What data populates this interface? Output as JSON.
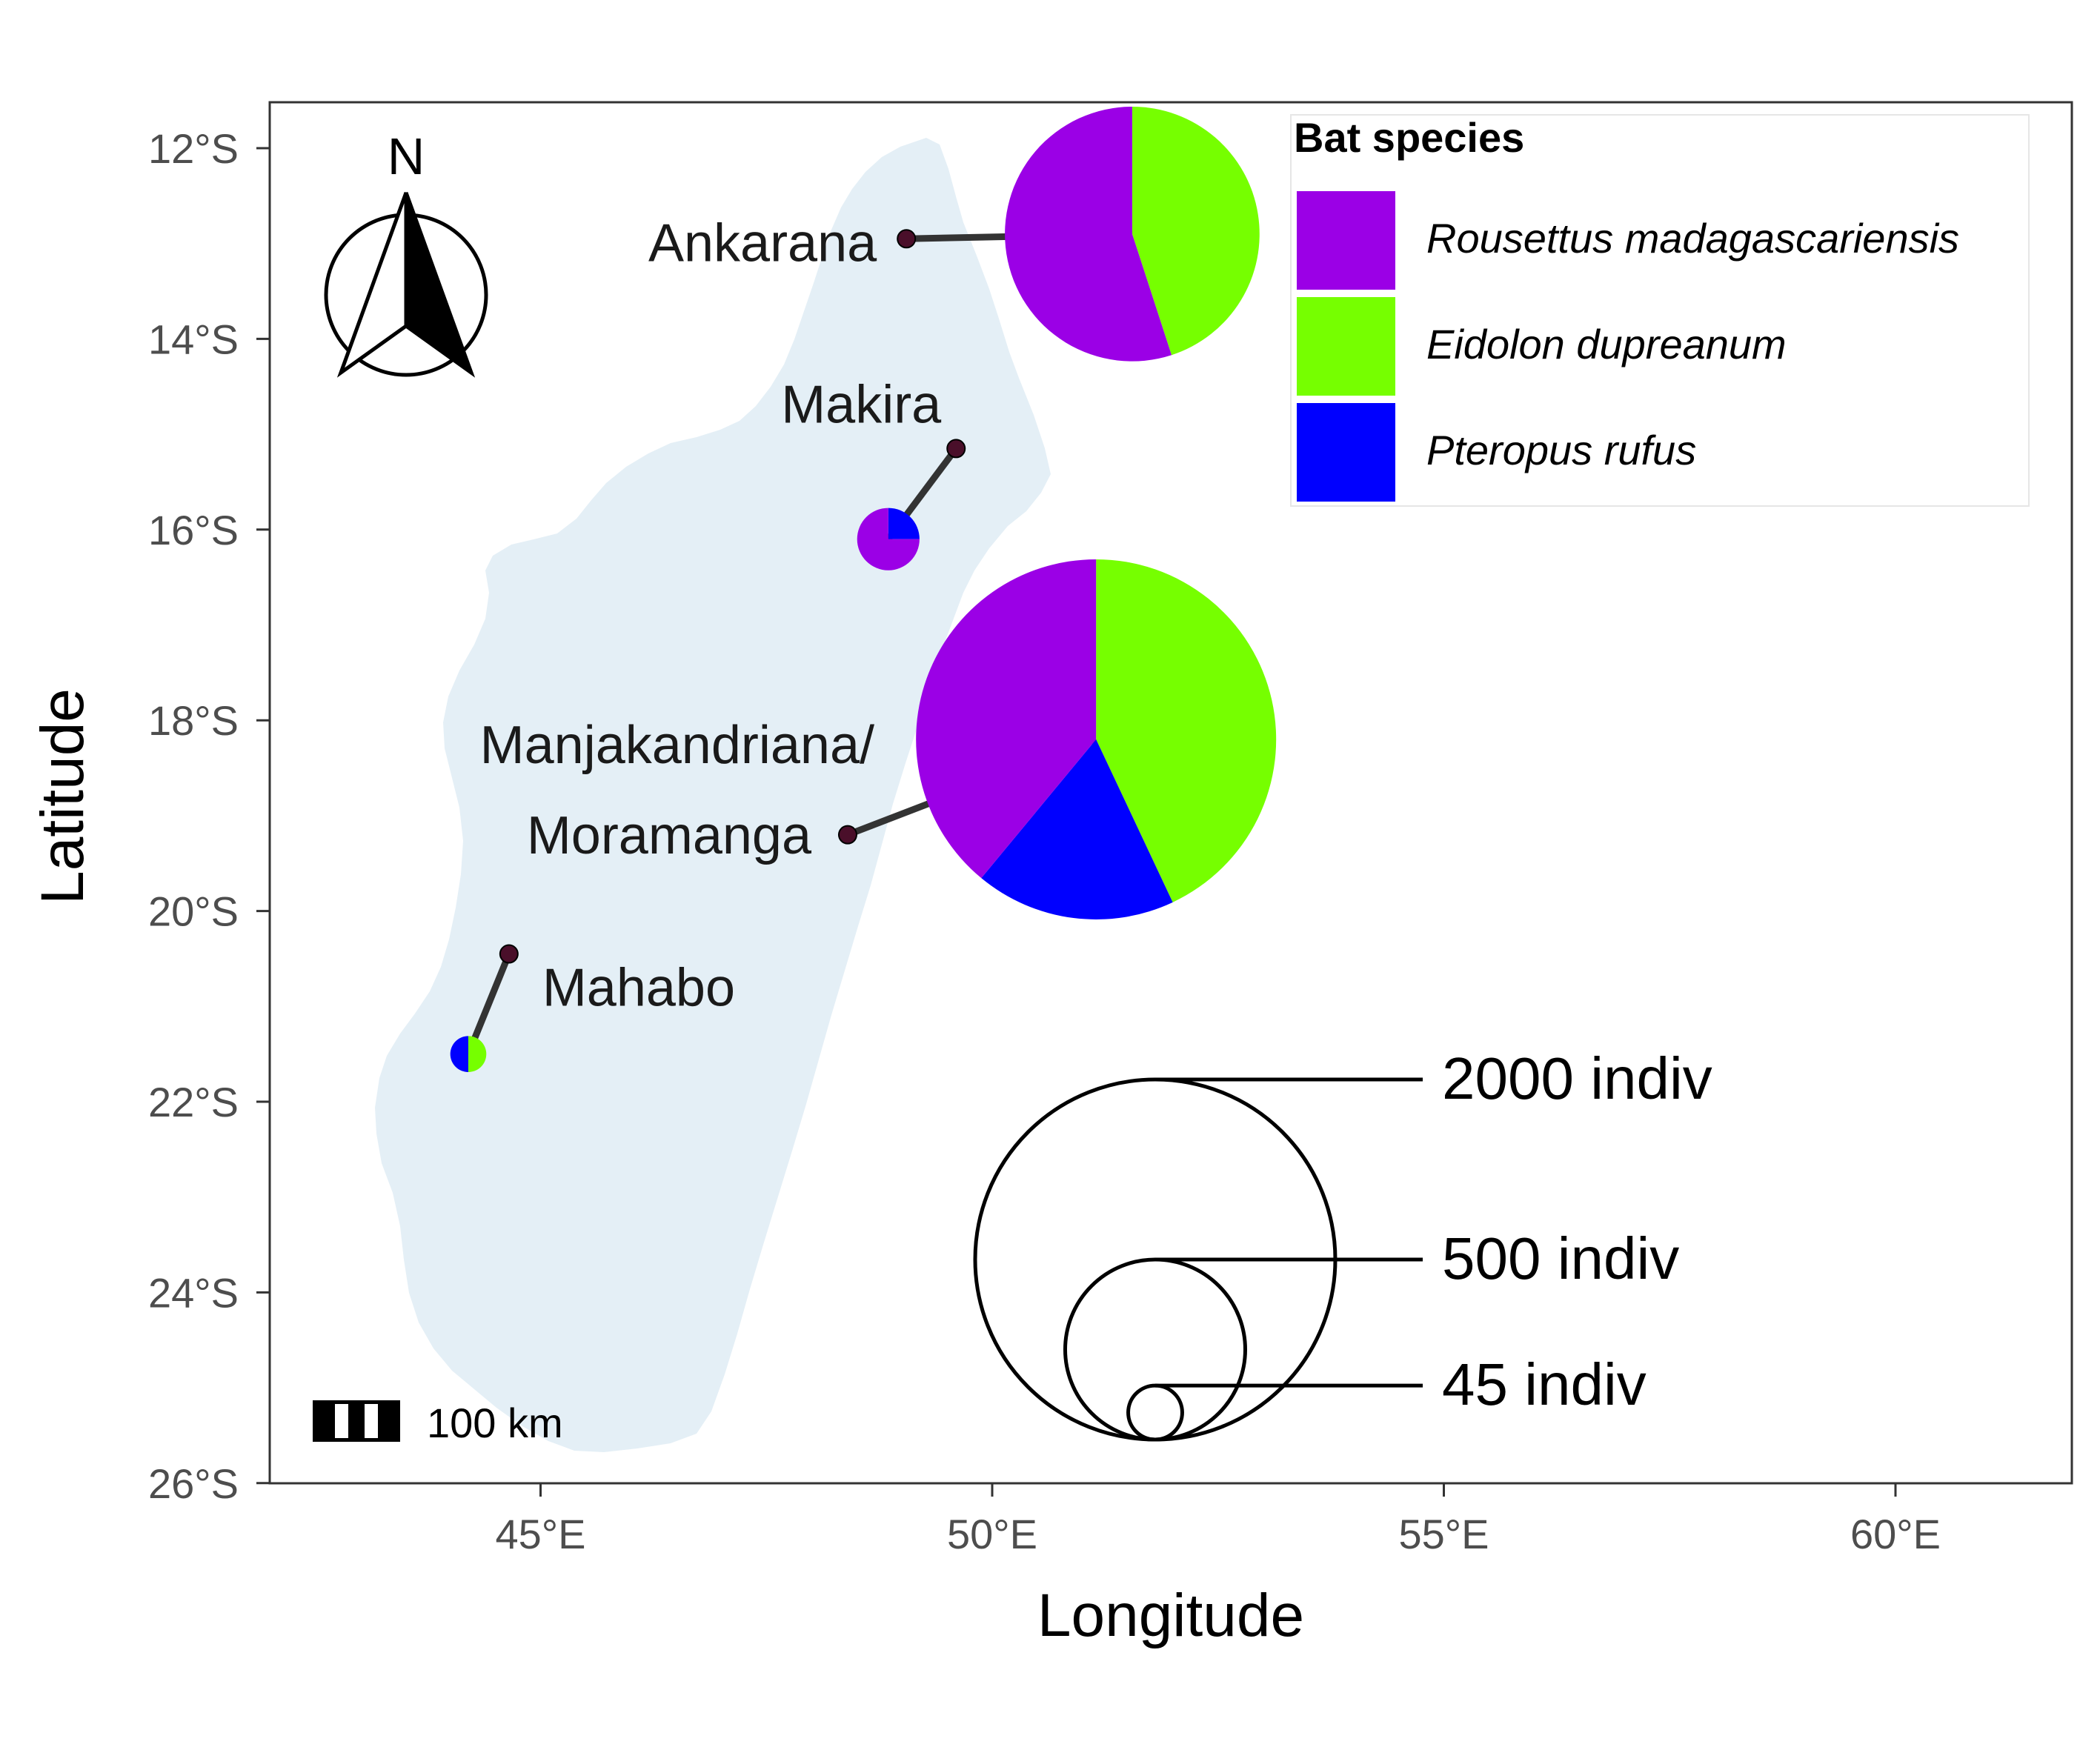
{
  "chart_data": {
    "type": "map",
    "title": "",
    "xlabel": "Longitude",
    "ylabel": "Latitude",
    "xlim": [
      42.0,
      62.0
    ],
    "ylim": [
      -26.0,
      -11.5
    ],
    "x_ticks": [
      {
        "value": 45,
        "label": "45°E"
      },
      {
        "value": 50,
        "label": "50°E"
      },
      {
        "value": 55,
        "label": "55°E"
      },
      {
        "value": 60,
        "label": "60°E"
      }
    ],
    "y_ticks": [
      {
        "value": -12,
        "label": "12°S"
      },
      {
        "value": -14,
        "label": "14°S"
      },
      {
        "value": -16,
        "label": "16°S"
      },
      {
        "value": -18,
        "label": "18°S"
      },
      {
        "value": -20,
        "label": "20°S"
      },
      {
        "value": -22,
        "label": "22°S"
      },
      {
        "value": -24,
        "label": "24°S"
      },
      {
        "value": -26,
        "label": "26°S"
      }
    ],
    "land_color": "#e4eff6",
    "legend": {
      "title": "Bat species",
      "placement": "top-right",
      "entries": [
        {
          "name": "Rousettus madagascariensis",
          "color": "#9b00e6"
        },
        {
          "name": "Eidolon dupreanum",
          "color": "#76ff00"
        },
        {
          "name": "Pteropus rufus",
          "color": "#0000ff"
        }
      ]
    },
    "sites": [
      {
        "name": "Ankarana",
        "lon": 49.05,
        "lat": -12.95,
        "pie_lon": 51.55,
        "pie_lat": -12.9,
        "total": 1000,
        "fractions": [
          0.55,
          0.45,
          0.0
        ]
      },
      {
        "name": "Makira",
        "lon": 49.6,
        "lat": -15.15,
        "pie_lon": 48.85,
        "pie_lat": -16.1,
        "total": 60,
        "fractions": [
          0.75,
          0.0,
          0.25
        ]
      },
      {
        "name": [
          "Manjakandriana/",
          "Moramanga"
        ],
        "lon": 48.4,
        "lat": -19.2,
        "pie_lon": 51.15,
        "pie_lat": -18.2,
        "total": 2000,
        "fractions": [
          0.39,
          0.43,
          0.18
        ]
      },
      {
        "name": "Mahabo",
        "lon": 44.65,
        "lat": -20.45,
        "pie_lon": 44.2,
        "pie_lat": -21.5,
        "total": 20,
        "fractions": [
          0.0,
          0.5,
          0.5
        ]
      }
    ],
    "size_legend": [
      {
        "value": 2000,
        "label": "2000 indiv"
      },
      {
        "value": 500,
        "label": "500 indiv"
      },
      {
        "value": 45,
        "label": "45 indiv"
      }
    ],
    "north_arrow_label": "N",
    "scale_bar_label": "100 km",
    "colors": {
      "axis": "#333333",
      "tick_text": "#4d4d4d",
      "site_point": "#4a0f2a",
      "leader_line": "#333333"
    }
  }
}
